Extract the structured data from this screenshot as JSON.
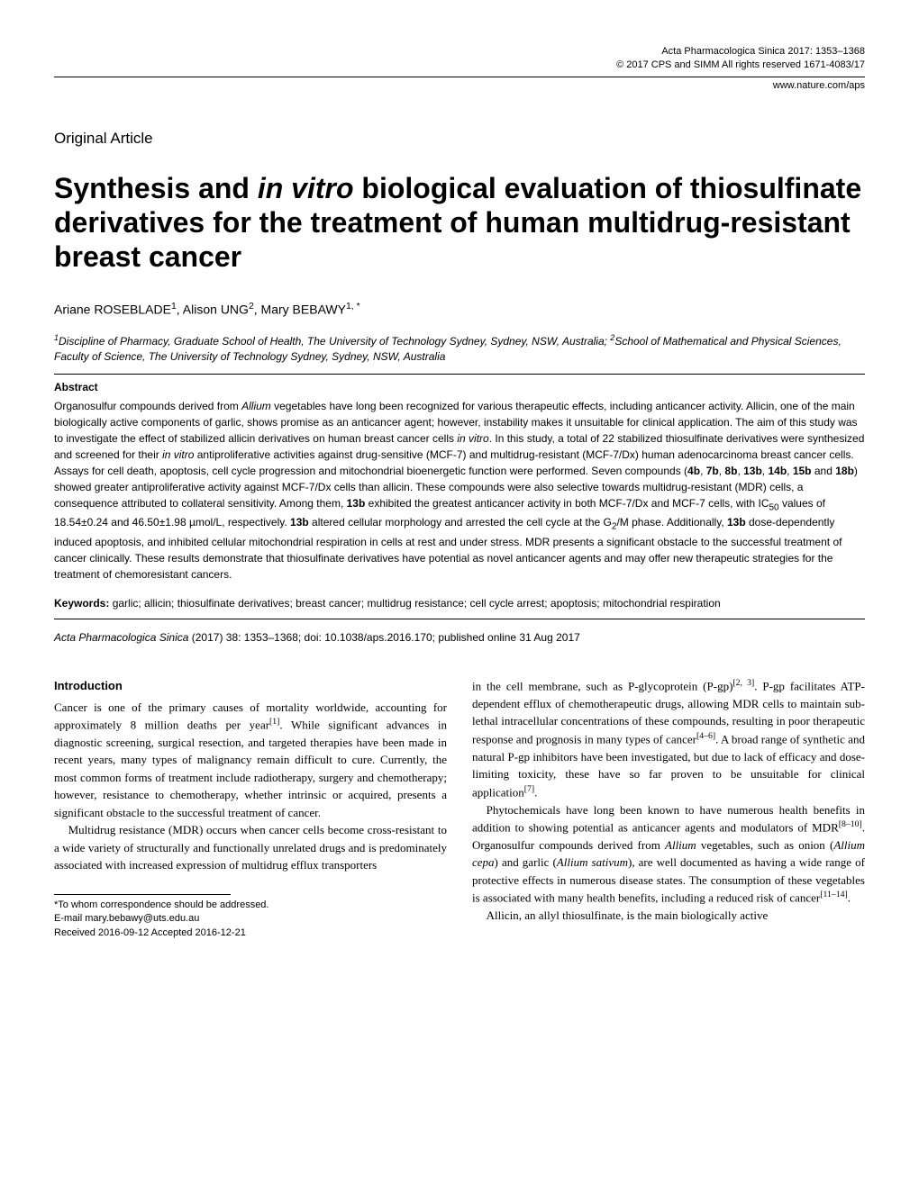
{
  "header": {
    "journal_line": "Acta Pharmacologica Sinica  2017: 1353–1368",
    "copyright_line": "© 2017 CPS and SIMM    All rights reserved 1671-4083/17",
    "url": "www.nature.com/aps"
  },
  "section_label": "Original Article",
  "title_html": "Synthesis and <i>in vitro</i> biological evaluation of thiosulfinate derivatives for the treatment of human multidrug-resistant breast cancer",
  "authors_html": "Ariane ROSEBLADE<sup>1</sup>, Alison UNG<sup>2</sup>, Mary BEBAWY<sup>1, *</sup>",
  "affiliations_html": "<sup>1</sup>Discipline of Pharmacy, Graduate School of Health, The University of Technology Sydney, Sydney, NSW, Australia; <sup>2</sup>School of Mathematical and Physical Sciences, Faculty of Science, The University of Technology Sydney, Sydney, NSW, Australia",
  "abstract": {
    "heading": "Abstract",
    "body_html": "Organosulfur compounds derived from <i>Allium</i> vegetables have long been recognized for various therapeutic effects, including anticancer activity. Allicin, one of the main biologically active components of garlic, shows promise as an anticancer agent; however, instability makes it unsuitable for clinical application. The aim of this study was to investigate the effect of stabilized allicin derivatives on human breast cancer cells <i>in vitro</i>. In this study, a total of 22 stabilized thiosulfinate derivatives were synthesized and screened for their <i>in vitro</i> antiproliferative activities against drug-sensitive (MCF-7) and multidrug-resistant (MCF-7/Dx) human adenocarcinoma breast cancer cells. Assays for cell death, apoptosis, cell cycle progression and mitochondrial bioenergetic function were performed. Seven compounds (<b>4b</b>, <b>7b</b>, <b>8b</b>, <b>13b</b>, <b>14b</b>, <b>15b</b> and <b>18b</b>) showed greater antiproliferative activity against MCF-7/Dx cells than allicin. These compounds were also selective towards multidrug-resistant (MDR) cells, a consequence attributed to collateral sensitivity. Among them, <b>13b</b> exhibited the greatest anticancer activity in both MCF-7/Dx and MCF-7 cells, with IC<sub>50</sub> values of 18.54±0.24 and 46.50±1.98 µmol/L, respectively. <b>13b</b> altered cellular morphology and arrested the cell cycle at the G<sub>2</sub>/M phase. Additionally, <b>13b</b> dose-dependently induced apoptosis, and inhibited cellular mitochondrial respiration in cells at rest and under stress. MDR presents a significant obstacle to the successful treatment of cancer clinically. These results demonstrate that thiosulfinate derivatives have potential as novel anticancer agents and may offer new therapeutic strategies for the treatment of chemoresistant cancers."
  },
  "keywords": {
    "label": "Keywords:",
    "text": "garlic; allicin; thiosulfinate derivatives; breast cancer; multidrug resistance; cell cycle arrest; apoptosis; mitochondrial respiration"
  },
  "citation": {
    "journal": "Acta Pharmacologica Sinica",
    "rest": "(2017) 38: 1353–1368; doi: 10.1038/aps.2016.170; published online 31 Aug 2017"
  },
  "body": {
    "intro_heading": "Introduction",
    "left": {
      "p1_html": "Cancer is one of the primary causes of mortality worldwide, accounting for approximately 8 million deaths per year<sup>[1]</sup>. While significant advances in diagnostic screening, surgical resection, and targeted therapies have been made in recent years, many types of malignancy remain difficult to cure. Currently, the most common forms of treatment include radiotherapy, surgery and chemotherapy; however, resistance to chemotherapy, whether intrinsic or acquired, presents a significant obstacle to the successful treatment of cancer.",
      "p2_html": "Multidrug resistance (MDR) occurs when cancer cells become cross-resistant to a wide variety of structurally and functionally unrelated drugs and is predominately associated with increased expression of multidrug efflux transporters"
    },
    "right": {
      "p1_html": "in the cell membrane, such as P-glycoprotein (P-gp)<sup>[2, 3]</sup>. P-gp facilitates ATP-dependent efflux of chemotherapeutic drugs, allowing MDR cells to maintain sub-lethal intracellular concentrations of these compounds, resulting in poor therapeutic response and prognosis in many types of cancer<sup>[4–6]</sup>. A broad range of synthetic and natural P-gp inhibitors have been investigated, but due to lack of efficacy and dose-limiting toxicity, these have so far proven to be unsuitable for clinical application<sup>[7]</sup>.",
      "p2_html": "Phytochemicals have long been known to have numerous health benefits in addition to showing potential as anticancer agents and modulators of MDR<sup>[8–10]</sup>. Organosulfur compounds derived from <i>Allium</i> vegetables, such as onion (<i>Allium cepa</i>) and garlic (<i>Allium sativum</i>), are well documented as having a wide range of protective effects in numerous disease states. The consumption of these vegetables is associated with many health benefits, including a reduced risk of cancer<sup>[11–14]</sup>.",
      "p3_html": "Allicin, an allyl thiosulfinate, is the main biologically active"
    }
  },
  "footnote": {
    "line1": "*To whom correspondence should be addressed.",
    "line2": "E-mail mary.bebawy@uts.edu.au",
    "line3": "Received 2016-09-12    Accepted 2016-12-21"
  }
}
